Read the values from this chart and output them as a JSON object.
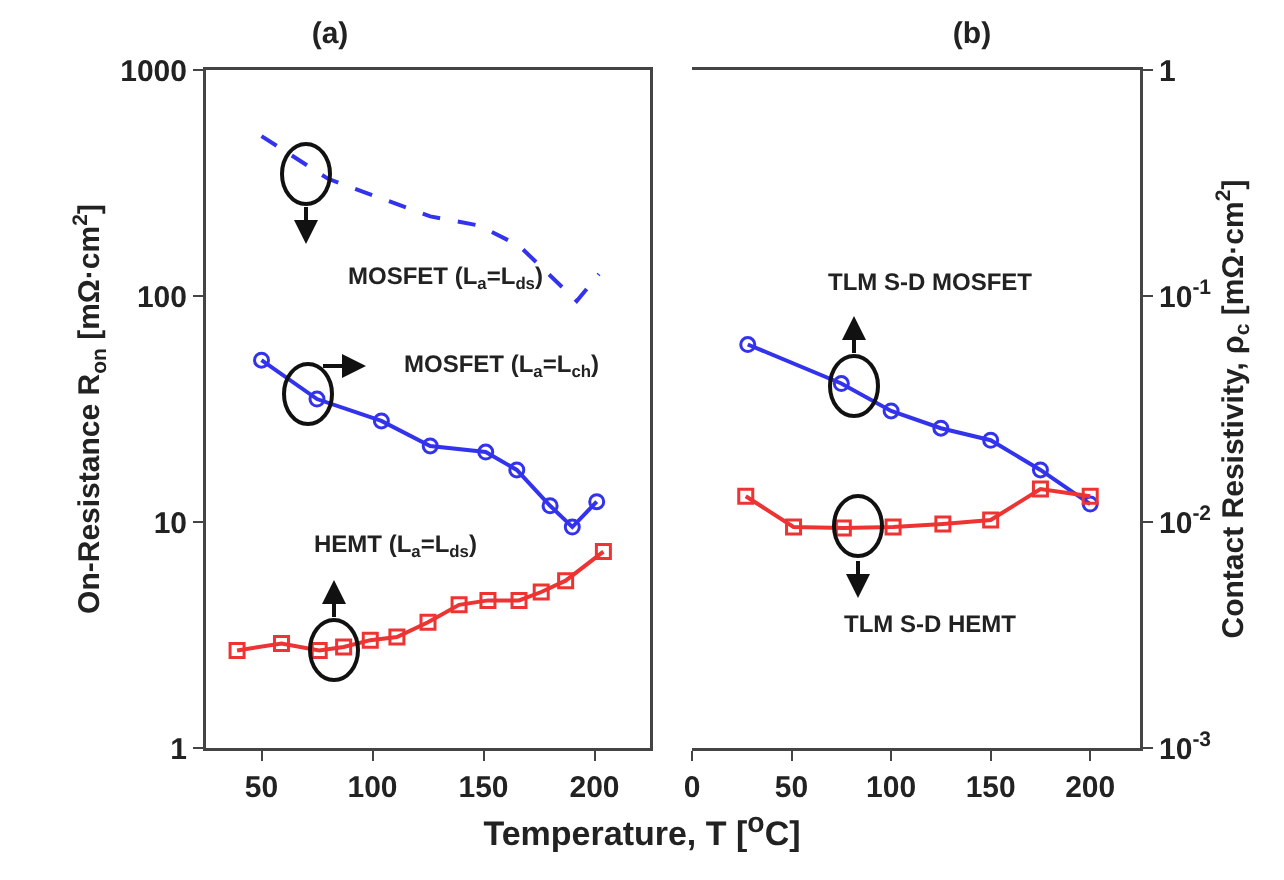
{
  "chart_data": [
    {
      "type": "line",
      "title": "(a)",
      "xlabel": "Temperature, T [$^{o}$C]",
      "ylabel": "On-Resistance R$_{on}$ [mΩ·cm$^{2}$]",
      "log": "y",
      "xlim": [
        25,
        225
      ],
      "xticks": [
        50,
        100,
        150,
        200
      ],
      "ylim": [
        1,
        1000
      ],
      "yticks": [
        1,
        10,
        100,
        1000
      ],
      "series": [
        {
          "color": "#3333ee",
          "line_style": "dashed",
          "marker": "none",
          "x": [
            50,
            80,
            126,
            148,
            166,
            192,
            202
          ],
          "values": [
            510,
            330,
            225,
            205,
            167,
            95,
            125
          ]
        },
        {
          "color": "#3333ee",
          "line_style": "solid",
          "marker": "circle",
          "x": [
            50,
            75,
            104,
            126,
            151,
            165,
            180,
            190,
            201
          ],
          "values": [
            52,
            35,
            28,
            21.7,
            20.4,
            17,
            11.8,
            9.5,
            12.3
          ]
        },
        {
          "color": "#ee3333",
          "line_style": "solid",
          "marker": "square",
          "x": [
            39,
            59,
            76,
            87,
            99,
            111,
            125,
            139,
            152,
            166,
            176,
            187,
            204
          ],
          "values": [
            2.7,
            2.9,
            2.7,
            2.8,
            3.0,
            3.1,
            3.6,
            4.3,
            4.5,
            4.5,
            4.9,
            5.5,
            7.4
          ]
        }
      ],
      "annotations": [
        "MOSFET (L$_{a}$=L$_{ds}$)",
        "MOSFET (L$_{a}$=L$_{ch}$)",
        "HEMT (L$_{a}$=L$_{ds}$)"
      ]
    },
    {
      "type": "line",
      "title": "(b)",
      "y2label": "Contact Resistivity, ρ$_{c}$ [mΩ·cm$^{2}$]",
      "log": "y2",
      "xlim": [
        0,
        225
      ],
      "xticks": [
        0,
        50,
        100,
        150,
        200
      ],
      "y2lim": [
        0.001,
        1
      ],
      "y2ticks": [
        {
          "value": 0.001,
          "label": "10$^{-3}$"
        },
        {
          "value": 0.01,
          "label": "10$^{-2}$"
        },
        {
          "value": 0.1,
          "label": "10$^{-1}$"
        },
        1
      ],
      "series": [
        {
          "axis": "y2",
          "color": "#3333ee",
          "line_style": "solid",
          "marker": "circle",
          "x": [
            28,
            75,
            100,
            125,
            150,
            175,
            200
          ],
          "values": [
            0.061,
            0.041,
            0.031,
            0.026,
            0.023,
            0.017,
            0.012
          ]
        },
        {
          "axis": "y2",
          "color": "#ee3333",
          "line_style": "solid",
          "marker": "square",
          "x": [
            27,
            51,
            76,
            101,
            126,
            150,
            175,
            200
          ],
          "values": [
            0.013,
            0.0095,
            0.0094,
            0.0095,
            0.0098,
            0.0102,
            0.014,
            0.013
          ]
        }
      ],
      "annotations": [
        "TLM S-D MOSFET",
        "TLM S-D HEMT"
      ]
    }
  ]
}
